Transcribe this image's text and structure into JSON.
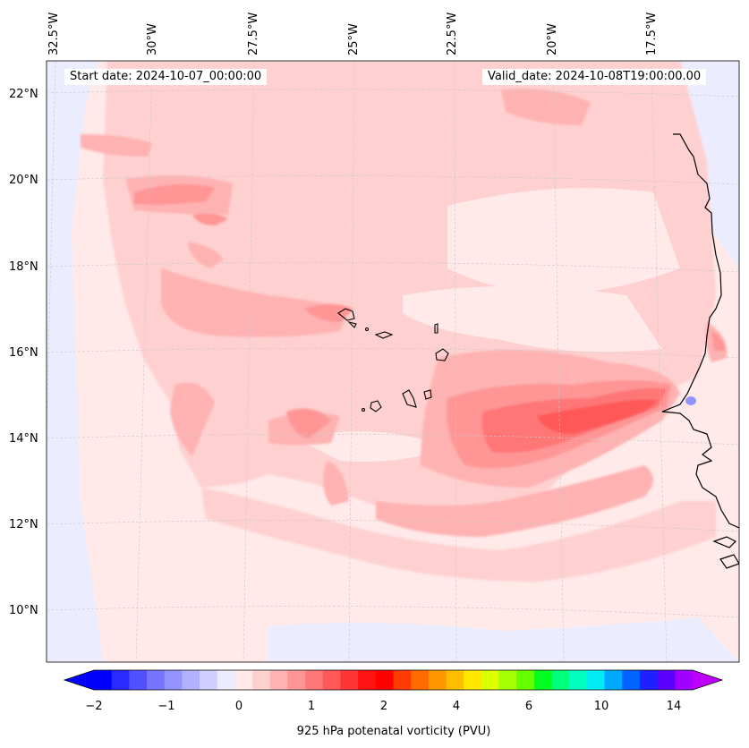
{
  "header": {
    "start_date": "Start date: 2024-10-07_00:00:00",
    "valid_date": "Valid_date: 2024-10-08T19:00:00.00"
  },
  "longitude_labels": [
    "32.5°W",
    "30°W",
    "27.5°W",
    "25°W",
    "22.5°W",
    "20°W",
    "17.5°W"
  ],
  "latitude_labels": [
    "22°N",
    "20°N",
    "18°N",
    "16°N",
    "14°N",
    "12°N",
    "10°N"
  ],
  "colorbar": {
    "label": "925 hPa potenatal vorticity (PVU)",
    "tick_labels": [
      "−2",
      "−1",
      "0",
      "1",
      "2",
      "4",
      "6",
      "10",
      "14"
    ],
    "colors": [
      "#0000ff",
      "#2a2aff",
      "#5050ff",
      "#7474ff",
      "#9393ff",
      "#b1b1ff",
      "#cfcfff",
      "#ececff",
      "#ffe9e9",
      "#ffd0d0",
      "#ffb2b2",
      "#ff9595",
      "#ff7676",
      "#ff5858",
      "#ff3535",
      "#ff1212",
      "#ff0000",
      "#ff3a00",
      "#ff6a00",
      "#ff9600",
      "#ffbf00",
      "#ffe800",
      "#dcff00",
      "#a6ff00",
      "#64ff00",
      "#00ff1e",
      "#00ff7a",
      "#00ffc0",
      "#00ecf5",
      "#00a8ff",
      "#0062ff",
      "#1f1fff",
      "#5a00ff",
      "#a000ff"
    ],
    "extend_low_color": "#0000ff",
    "extend_high_color": "#c000ff"
  }
}
